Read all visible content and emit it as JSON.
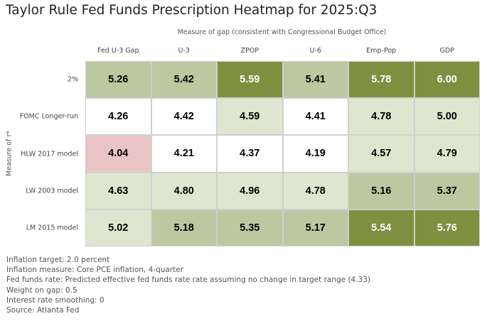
{
  "chart_data": {
    "type": "heatmap",
    "title": "Taylor Rule Fed Funds Prescription Heatmap for 2025:Q3",
    "xlabel": "Measure of gap (consistent with Congressional Budget Office)",
    "ylabel": "Measure of r*",
    "columns": [
      "Fed U-3 Gap",
      "U-3",
      "ZPOP",
      "U-6",
      "Emp-Pop",
      "GDP"
    ],
    "rows": [
      "2%",
      "FOMC Longer-run",
      "HLW 2017 model",
      "LW 2003 model",
      "LM 2015 model"
    ],
    "values": [
      [
        "5.26",
        "5.42",
        "5.59",
        "5.41",
        "5.78",
        "6.00"
      ],
      [
        "4.26",
        "4.42",
        "4.59",
        "4.41",
        "4.78",
        "5.00"
      ],
      [
        "4.04",
        "4.21",
        "4.37",
        "4.19",
        "4.57",
        "4.79"
      ],
      [
        "4.63",
        "4.80",
        "4.96",
        "4.78",
        "5.16",
        "5.37"
      ],
      [
        "5.02",
        "5.18",
        "5.35",
        "5.17",
        "5.54",
        "5.76"
      ]
    ],
    "reference_rate": 4.33,
    "colors": {
      "dark_green": "#7b9140",
      "mid_green": "#bcc8a0",
      "light_green": "#dfe6d0",
      "neutral": "#ffffff",
      "red": "#eac4c4"
    }
  },
  "notes": [
    "Inflation target: 2.0 percent",
    "Inflation measure: Core PCE inflation, 4-quarter",
    "Fed funds rate: Predicted effective fed funds rate rate assuming no change in target range (4.33)",
    "Weight on gap: 0.5",
    "Interest rate smoothing: 0",
    "Source: Atlanta Fed"
  ]
}
